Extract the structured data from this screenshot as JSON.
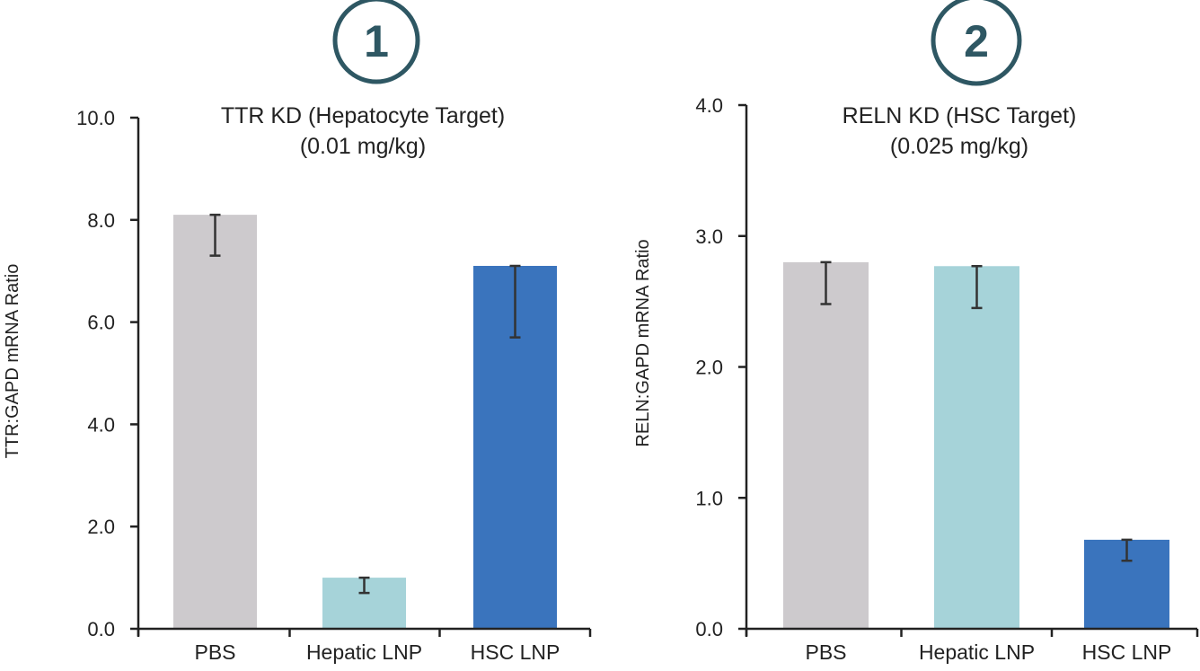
{
  "panels": [
    {
      "badge": "1",
      "chart_data": {
        "type": "bar",
        "title": [
          "TTR KD (Hepatocyte Target)",
          "(0.01 mg/kg)"
        ],
        "xlabel": "",
        "ylabel": "TTR:GAPD mRNA Ratio",
        "categories": [
          "PBS",
          "Hepatic LNP",
          "HSC LNP"
        ],
        "values": [
          8.1,
          1.0,
          7.1
        ],
        "error_low": [
          7.3,
          0.7,
          5.7
        ],
        "error_high": [
          8.1,
          1.0,
          7.1
        ],
        "ylim": [
          0,
          10
        ],
        "yticks": [
          0,
          2,
          4,
          6,
          8,
          10
        ],
        "ytick_labels": [
          "0.0",
          "2.0",
          "4.0",
          "6.0",
          "8.0",
          "10.0"
        ],
        "colors": [
          "#cdcacd",
          "#a6d3d9",
          "#3a74bd"
        ],
        "grid": false
      }
    },
    {
      "badge": "2",
      "chart_data": {
        "type": "bar",
        "title": [
          "RELN KD (HSC Target)",
          "(0.025 mg/kg)"
        ],
        "xlabel": "",
        "ylabel": "RELN:GAPD mRNA Ratio",
        "categories": [
          "PBS",
          "Hepatic LNP",
          "HSC LNP"
        ],
        "values": [
          2.8,
          2.77,
          0.68
        ],
        "error_low": [
          2.48,
          2.45,
          0.52
        ],
        "error_high": [
          2.8,
          2.77,
          0.68
        ],
        "ylim": [
          0,
          4
        ],
        "yticks": [
          0,
          1,
          2,
          3,
          4
        ],
        "ytick_labels": [
          "0.0",
          "1.0",
          "2.0",
          "3.0",
          "4.0"
        ],
        "colors": [
          "#cdcacd",
          "#a6d3d9",
          "#3a74bd"
        ],
        "grid": false
      }
    }
  ]
}
